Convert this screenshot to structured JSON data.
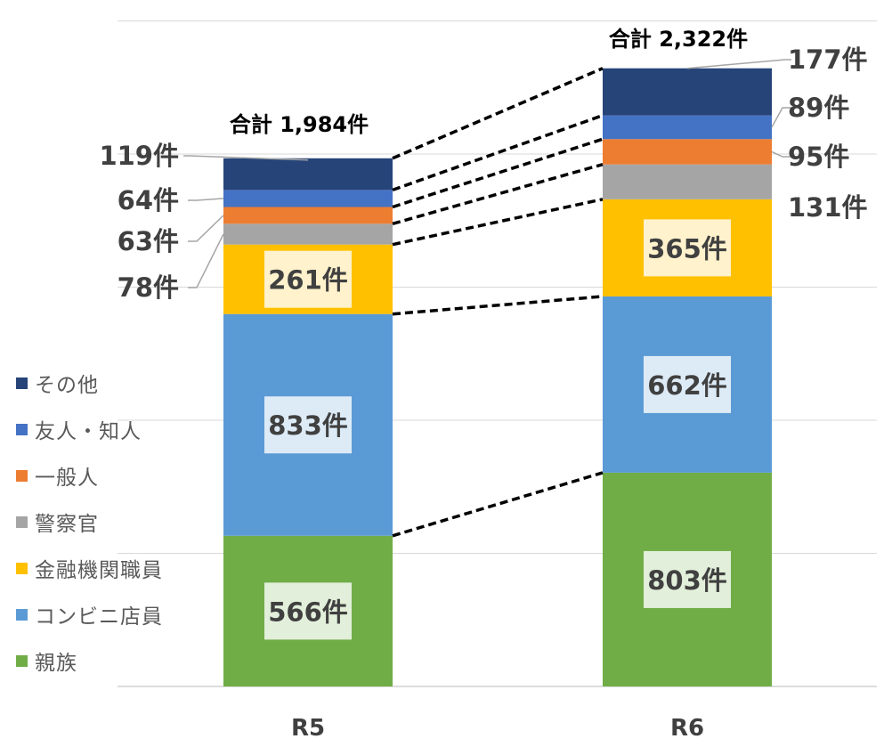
{
  "chart_data": {
    "type": "bar",
    "stacked": true,
    "categories": [
      "R5",
      "R6"
    ],
    "series": [
      {
        "name": "親族",
        "values": [
          566,
          803
        ],
        "color": "#70AD47"
      },
      {
        "name": "コンビニ店員",
        "values": [
          833,
          662
        ],
        "color": "#5B9BD5"
      },
      {
        "name": "金融機関職員",
        "values": [
          261,
          365
        ],
        "color": "#FFC000"
      },
      {
        "name": "警察官",
        "values": [
          78,
          131
        ],
        "color": "#A5A5A5"
      },
      {
        "name": "一般人",
        "values": [
          63,
          95
        ],
        "color": "#ED7D31"
      },
      {
        "name": "友人・知人",
        "values": [
          64,
          89
        ],
        "color": "#4472C4"
      },
      {
        "name": "その他",
        "values": [
          119,
          177
        ],
        "color": "#264478"
      }
    ],
    "totals": [
      "合計 1,984件",
      "合計 2,322件"
    ],
    "data_labels": [
      [
        "566件",
        "833件",
        "261件",
        "78件",
        "63件",
        "64件",
        "119件"
      ],
      [
        "803件",
        "662件",
        "365件",
        "131件",
        "95件",
        "89件",
        "177件"
      ]
    ],
    "legend_position": "left",
    "grid": true,
    "ylim": [
      0,
      2500
    ]
  },
  "legend": {
    "items": [
      {
        "label": "その他",
        "color": "#264478"
      },
      {
        "label": "友人・知人",
        "color": "#4472C4"
      },
      {
        "label": "一般人",
        "color": "#ED7D31"
      },
      {
        "label": "警察官",
        "color": "#A5A5A5"
      },
      {
        "label": "金融機関職員",
        "color": "#FFC000"
      },
      {
        "label": "コンビニ店員",
        "color": "#5B9BD5"
      },
      {
        "label": "親族",
        "color": "#70AD47"
      }
    ]
  }
}
